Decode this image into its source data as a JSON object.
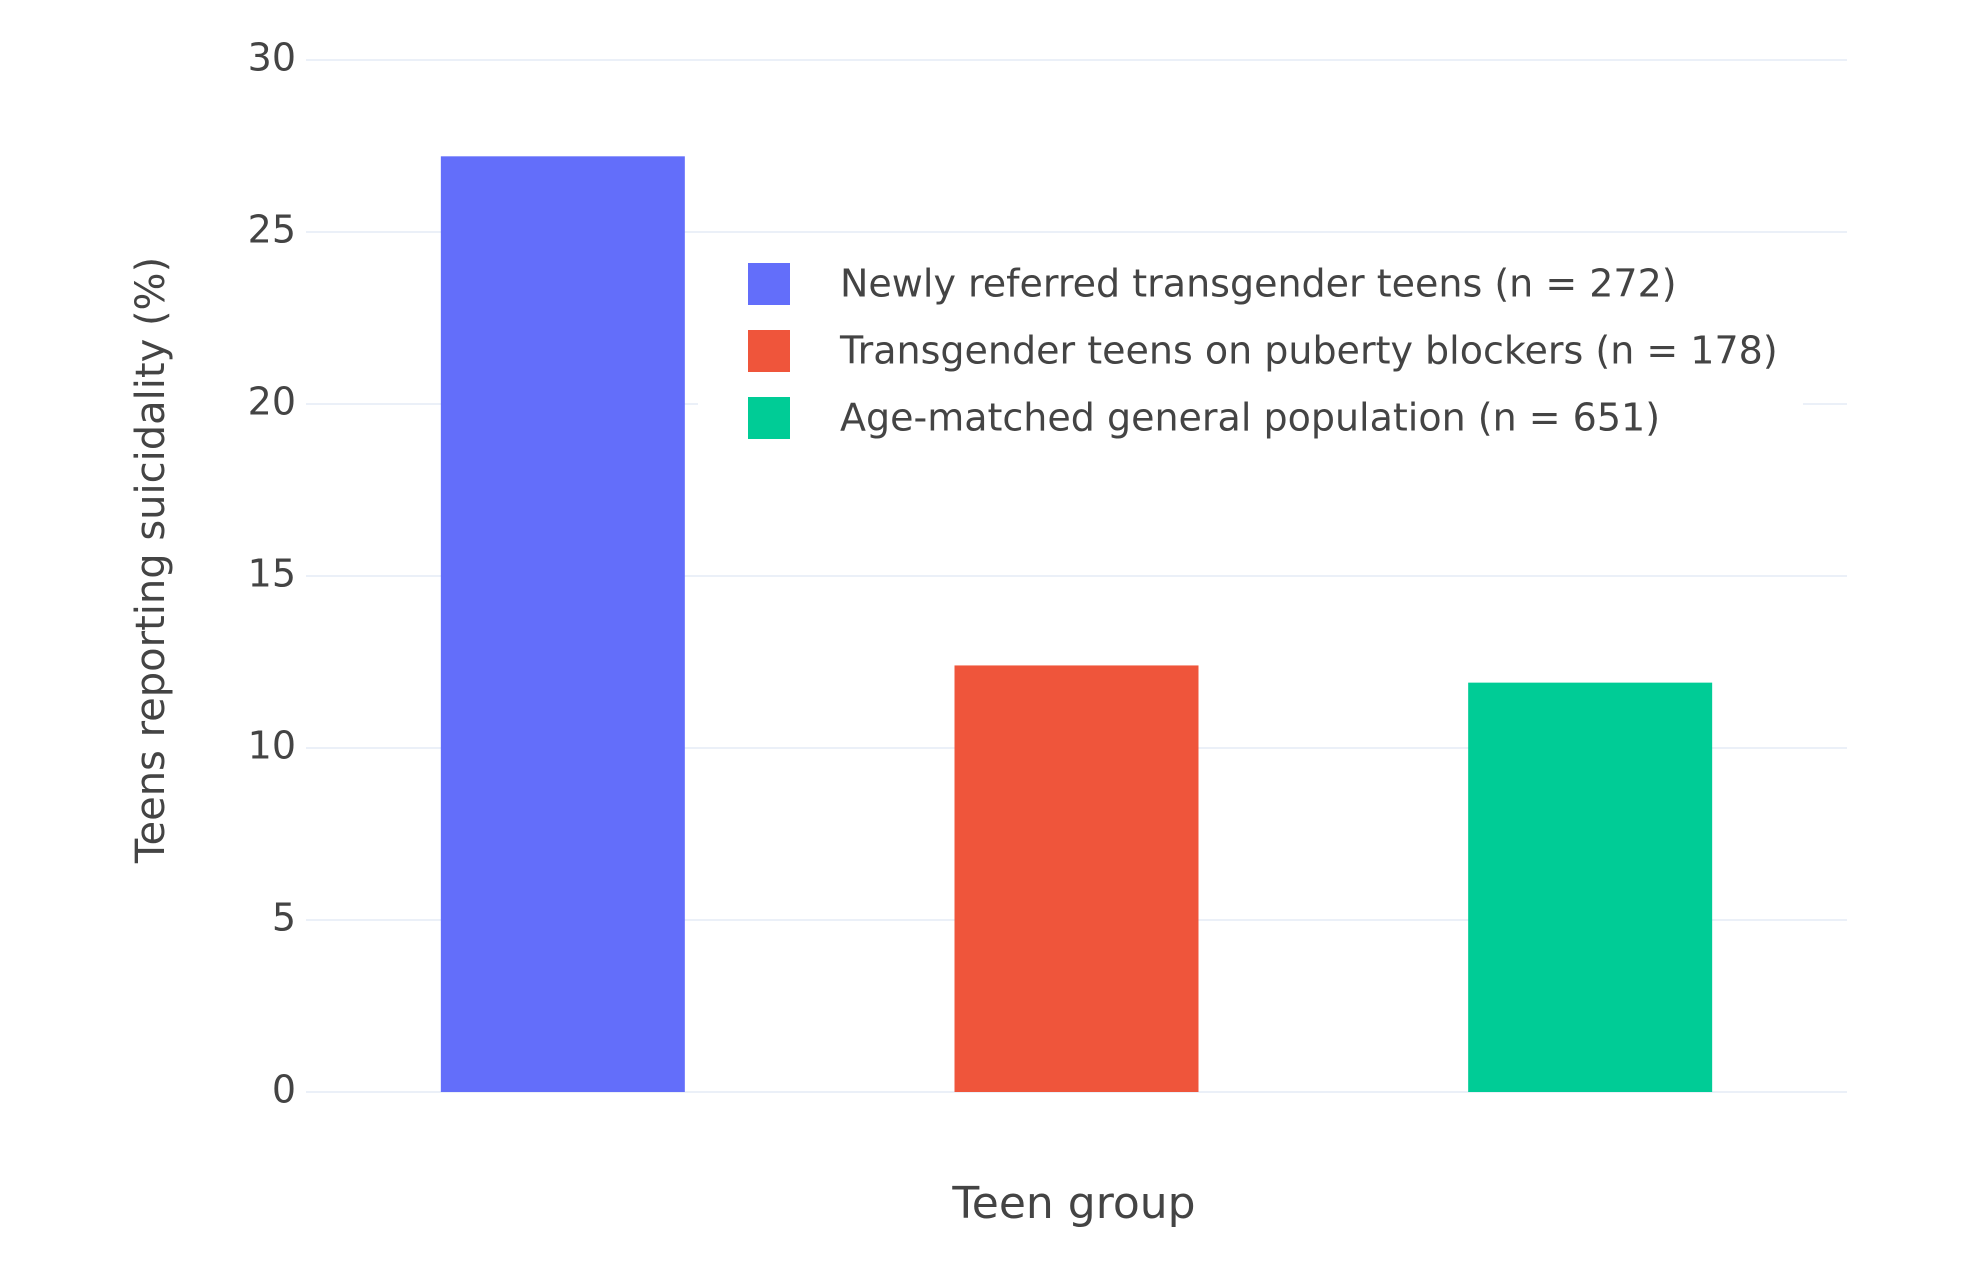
{
  "chart_data": {
    "type": "bar",
    "x_label": "Teen group",
    "y_label": "Teens reporting suicidality (%)",
    "series": [
      {
        "name": "Newly referred transgender teens (n = 272)",
        "color": "#636efa",
        "values": [
          27.2
        ]
      },
      {
        "name": "Transgender teens on puberty blockers (n = 178)",
        "color": "#ef553b",
        "values": [
          12.4
        ]
      },
      {
        "name": "Age-matched general population (n = 651)",
        "color": "#00cc96",
        "values": [
          11.9
        ]
      }
    ],
    "ylim": [
      0,
      30
    ],
    "yticks": [
      0,
      5,
      10,
      15,
      20,
      25,
      30
    ],
    "grid": true,
    "legend": "top-right"
  }
}
